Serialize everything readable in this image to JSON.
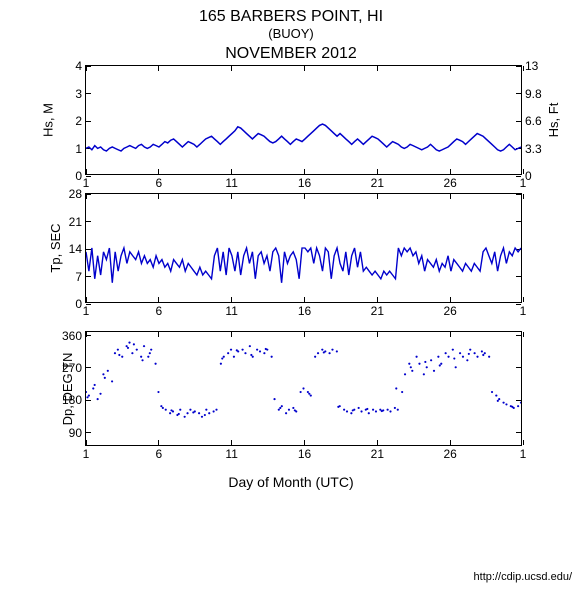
{
  "header": {
    "title": "165 BARBERS POINT, HI",
    "subtitle": "(BUOY)",
    "month": "NOVEMBER 2012"
  },
  "xaxis": {
    "label": "Day of Month (UTC)",
    "min": 1,
    "max": 31,
    "ticks": [
      1,
      6,
      11,
      16,
      21,
      26,
      1
    ],
    "tick_pos": [
      1,
      6,
      11,
      16,
      21,
      26,
      31
    ]
  },
  "footer": "http://cdip.ucsd.edu/",
  "colors": {
    "line": "#0000cc",
    "scatter": "#0000cc",
    "axis": "#000000",
    "bg": "#ffffff"
  },
  "charts": [
    {
      "id": "hs",
      "type": "line",
      "height": 110,
      "ylabel_left": "Hs, M",
      "ylabel_right": "Hs, Ft",
      "ylim": [
        0,
        4
      ],
      "yticks_left": [
        0,
        1,
        2,
        3,
        4
      ],
      "yticks_right_labels": [
        "0",
        "3.3",
        "6.6",
        "9.8",
        "13"
      ],
      "yticks_right_pos": [
        0,
        1,
        2,
        3,
        4
      ],
      "line_width": 1.5,
      "data": [
        0.95,
        1.0,
        0.9,
        1.05,
        0.95,
        1.0,
        0.9,
        0.85,
        0.95,
        1.0,
        0.95,
        0.9,
        0.85,
        0.95,
        1.0,
        1.05,
        1.0,
        0.95,
        1.05,
        1.1,
        1.0,
        0.95,
        1.0,
        1.1,
        1.05,
        1.0,
        1.1,
        1.2,
        1.15,
        1.25,
        1.3,
        1.2,
        1.1,
        1.0,
        1.1,
        1.2,
        1.15,
        1.1,
        1.0,
        1.1,
        1.2,
        1.3,
        1.35,
        1.4,
        1.3,
        1.2,
        1.1,
        1.2,
        1.3,
        1.4,
        1.5,
        1.6,
        1.75,
        1.7,
        1.6,
        1.5,
        1.4,
        1.3,
        1.4,
        1.5,
        1.45,
        1.4,
        1.3,
        1.2,
        1.15,
        1.2,
        1.3,
        1.4,
        1.3,
        1.2,
        1.1,
        1.2,
        1.3,
        1.25,
        1.2,
        1.3,
        1.4,
        1.5,
        1.6,
        1.7,
        1.8,
        1.85,
        1.8,
        1.7,
        1.6,
        1.5,
        1.4,
        1.5,
        1.4,
        1.3,
        1.2,
        1.1,
        1.2,
        1.3,
        1.2,
        1.1,
        1.2,
        1.3,
        1.4,
        1.35,
        1.3,
        1.2,
        1.1,
        1.0,
        1.1,
        1.2,
        1.15,
        1.1,
        1.0,
        0.95,
        1.0,
        1.1,
        1.05,
        1.0,
        0.95,
        0.9,
        0.95,
        1.0,
        1.1,
        1.0,
        0.9,
        0.85,
        0.9,
        0.95,
        1.0,
        1.1,
        1.2,
        1.3,
        1.25,
        1.2,
        1.1,
        1.2,
        1.3,
        1.4,
        1.5,
        1.45,
        1.4,
        1.3,
        1.2,
        1.1,
        1.0,
        0.9,
        0.85,
        0.9,
        1.0,
        1.1,
        1.0,
        0.9,
        0.95,
        1.0
      ]
    },
    {
      "id": "tp",
      "type": "line",
      "height": 110,
      "ylabel_left": "Tp, SEC",
      "ylim": [
        0,
        28
      ],
      "yticks_left": [
        0,
        7,
        14,
        21,
        28
      ],
      "line_width": 1.4,
      "data": [
        13,
        8,
        14,
        6,
        12,
        7,
        13,
        11,
        14,
        5,
        13,
        8,
        12,
        14,
        10,
        13,
        12,
        11,
        13,
        10,
        12,
        10,
        11,
        9,
        12,
        10,
        11,
        9,
        10,
        8,
        11,
        10,
        9,
        11,
        8,
        10,
        9,
        8,
        7,
        9,
        7,
        8,
        7,
        6,
        12,
        14,
        8,
        13,
        7,
        14,
        12,
        8,
        13,
        7,
        12,
        14,
        10,
        13,
        6,
        12,
        13,
        10,
        12,
        8,
        13,
        14,
        12,
        5,
        13,
        10,
        12,
        13,
        11,
        6,
        14,
        14,
        13,
        14,
        10,
        14,
        12,
        8,
        14,
        13,
        6,
        12,
        14,
        10,
        8,
        13,
        7,
        12,
        14,
        9,
        13,
        8,
        9,
        8,
        7,
        8,
        7,
        6,
        8,
        7,
        8,
        7,
        6,
        14,
        12,
        14,
        13,
        14,
        12,
        13,
        10,
        12,
        8,
        11,
        10,
        9,
        11,
        8,
        10,
        9,
        12,
        8,
        11,
        10,
        9,
        8,
        10,
        9,
        8,
        10,
        9,
        8,
        13,
        14,
        12,
        10,
        13,
        8,
        12,
        14,
        10,
        13,
        12,
        14,
        13,
        14
      ]
    },
    {
      "id": "dp",
      "type": "scatter",
      "height": 115,
      "ylabel_left": "Dp, DEG TN",
      "ylim": [
        50,
        370
      ],
      "yticks_left": [
        90,
        180,
        270,
        360
      ],
      "marker_size": 2.2,
      "data": [
        [
          1.0,
          200
        ],
        [
          1.2,
          190
        ],
        [
          1.5,
          210
        ],
        [
          1.8,
          180
        ],
        [
          2.0,
          195
        ],
        [
          2.3,
          240
        ],
        [
          2.5,
          260
        ],
        [
          2.8,
          230
        ],
        [
          3.0,
          310
        ],
        [
          3.2,
          320
        ],
        [
          3.5,
          300
        ],
        [
          3.8,
          330
        ],
        [
          4.0,
          340
        ],
        [
          4.2,
          310
        ],
        [
          4.5,
          320
        ],
        [
          4.8,
          300
        ],
        [
          5.0,
          330
        ],
        [
          5.3,
          300
        ],
        [
          5.5,
          320
        ],
        [
          5.8,
          280
        ],
        [
          6.0,
          200
        ],
        [
          6.2,
          160
        ],
        [
          6.5,
          150
        ],
        [
          6.8,
          140
        ],
        [
          7.0,
          145
        ],
        [
          7.3,
          135
        ],
        [
          7.5,
          150
        ],
        [
          7.8,
          130
        ],
        [
          8.0,
          140
        ],
        [
          8.2,
          150
        ],
        [
          8.5,
          145
        ],
        [
          8.8,
          140
        ],
        [
          9.0,
          130
        ],
        [
          9.3,
          150
        ],
        [
          9.5,
          140
        ],
        [
          9.8,
          145
        ],
        [
          10.0,
          150
        ],
        [
          10.3,
          280
        ],
        [
          10.5,
          300
        ],
        [
          10.8,
          310
        ],
        [
          11.0,
          320
        ],
        [
          11.2,
          300
        ],
        [
          11.5,
          315
        ],
        [
          11.8,
          320
        ],
        [
          12.0,
          310
        ],
        [
          12.3,
          330
        ],
        [
          12.5,
          300
        ],
        [
          12.8,
          320
        ],
        [
          13.0,
          315
        ],
        [
          13.3,
          310
        ],
        [
          13.5,
          320
        ],
        [
          13.8,
          300
        ],
        [
          14.0,
          180
        ],
        [
          14.3,
          150
        ],
        [
          14.5,
          160
        ],
        [
          14.8,
          140
        ],
        [
          15.0,
          150
        ],
        [
          15.3,
          155
        ],
        [
          15.5,
          145
        ],
        [
          15.8,
          200
        ],
        [
          16.0,
          210
        ],
        [
          16.3,
          200
        ],
        [
          16.5,
          190
        ],
        [
          16.8,
          300
        ],
        [
          17.0,
          310
        ],
        [
          17.3,
          320
        ],
        [
          17.5,
          315
        ],
        [
          17.8,
          310
        ],
        [
          18.0,
          320
        ],
        [
          18.3,
          315
        ],
        [
          18.5,
          160
        ],
        [
          18.8,
          150
        ],
        [
          19.0,
          145
        ],
        [
          19.3,
          140
        ],
        [
          19.5,
          150
        ],
        [
          19.8,
          155
        ],
        [
          20.0,
          145
        ],
        [
          20.3,
          150
        ],
        [
          20.5,
          140
        ],
        [
          20.8,
          150
        ],
        [
          21.0,
          145
        ],
        [
          21.3,
          150
        ],
        [
          21.5,
          148
        ],
        [
          21.8,
          150
        ],
        [
          22.0,
          145
        ],
        [
          22.3,
          155
        ],
        [
          22.5,
          150
        ],
        [
          22.8,
          200
        ],
        [
          23.0,
          250
        ],
        [
          23.3,
          280
        ],
        [
          23.5,
          260
        ],
        [
          23.8,
          300
        ],
        [
          24.0,
          280
        ],
        [
          24.3,
          250
        ],
        [
          24.5,
          270
        ],
        [
          24.8,
          290
        ],
        [
          25.0,
          260
        ],
        [
          25.3,
          300
        ],
        [
          25.5,
          280
        ],
        [
          25.8,
          310
        ],
        [
          26.0,
          300
        ],
        [
          26.3,
          320
        ],
        [
          26.5,
          270
        ],
        [
          26.8,
          310
        ],
        [
          27.0,
          300
        ],
        [
          27.3,
          290
        ],
        [
          27.5,
          320
        ],
        [
          27.8,
          310
        ],
        [
          28.0,
          300
        ],
        [
          28.3,
          315
        ],
        [
          28.5,
          310
        ],
        [
          28.8,
          300
        ],
        [
          29.0,
          200
        ],
        [
          29.3,
          190
        ],
        [
          29.5,
          180
        ],
        [
          29.8,
          170
        ],
        [
          30.0,
          165
        ],
        [
          30.3,
          160
        ],
        [
          30.5,
          155
        ],
        [
          30.8,
          160
        ],
        [
          31.0,
          170
        ],
        [
          1.1,
          185
        ],
        [
          1.6,
          220
        ],
        [
          2.2,
          250
        ],
        [
          3.3,
          305
        ],
        [
          3.9,
          325
        ],
        [
          4.3,
          335
        ],
        [
          4.9,
          290
        ],
        [
          5.4,
          310
        ],
        [
          6.3,
          155
        ],
        [
          6.9,
          148
        ],
        [
          7.4,
          138
        ],
        [
          8.4,
          142
        ],
        [
          9.2,
          135
        ],
        [
          10.4,
          295
        ],
        [
          11.4,
          318
        ],
        [
          12.4,
          305
        ],
        [
          13.4,
          322
        ],
        [
          14.4,
          155
        ],
        [
          15.4,
          148
        ],
        [
          16.4,
          195
        ],
        [
          17.4,
          312
        ],
        [
          18.4,
          158
        ],
        [
          19.4,
          148
        ],
        [
          20.4,
          152
        ],
        [
          21.4,
          146
        ],
        [
          22.4,
          210
        ],
        [
          23.4,
          270
        ],
        [
          24.4,
          285
        ],
        [
          25.4,
          275
        ],
        [
          26.4,
          295
        ],
        [
          27.4,
          308
        ],
        [
          28.4,
          305
        ],
        [
          29.4,
          175
        ],
        [
          30.4,
          158
        ]
      ],
      "show_xticks": true
    }
  ]
}
